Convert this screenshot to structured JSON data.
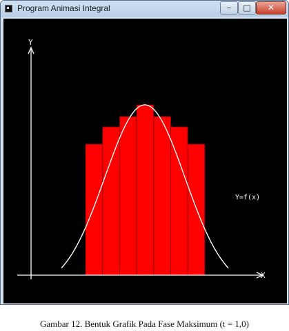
{
  "window": {
    "title": "Program Animasi Integral",
    "controls": {
      "minimize": "–",
      "maximize": "□",
      "close": "✕"
    }
  },
  "graph": {
    "y_axis_label": "Y",
    "x_axis_label": "X",
    "curve_label": "Y=f(x)",
    "colors": {
      "background": "#000000",
      "bars": "#ff0000",
      "curve": "#ffffff",
      "axes": "#ffffff"
    }
  },
  "chart_data": {
    "type": "bar",
    "description_free": true,
    "values": [
      190,
      215,
      230,
      247,
      230,
      215,
      190
    ],
    "curve": "bell",
    "xlabel": "X",
    "ylabel": "Y"
  },
  "caption": "Gambar 12. Bentuk Grafik Pada Fase Maksimum (t = 1,0)"
}
